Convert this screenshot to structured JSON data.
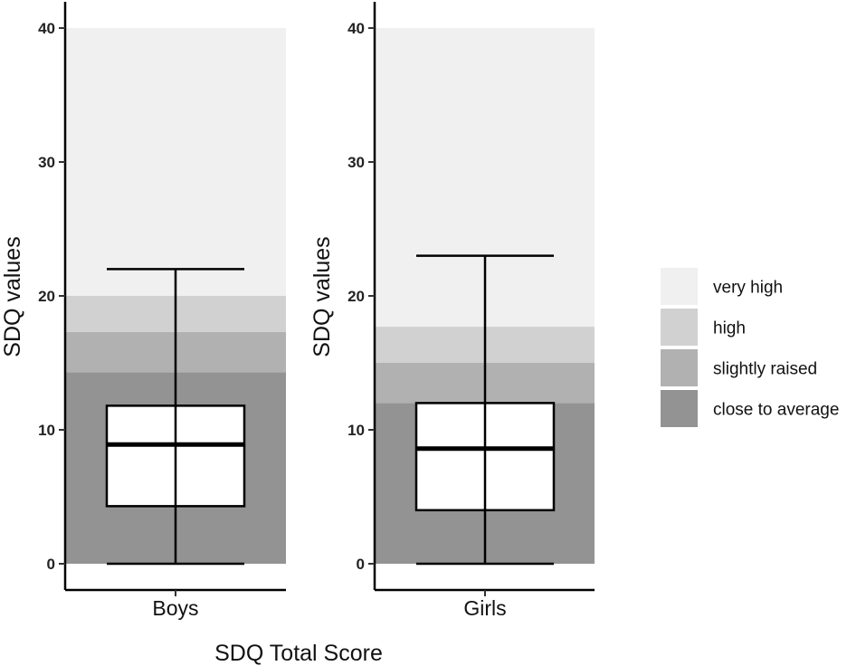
{
  "chart_data": {
    "type": "boxplot",
    "title": "",
    "xlabel": "SDQ Total Score",
    "ylabel": "SDQ values",
    "ylim": [
      0,
      40
    ],
    "yticks": [
      "0",
      "10",
      "20",
      "30",
      "40"
    ],
    "grid": false,
    "legend": {
      "placement": "right",
      "entries": [
        {
          "label": "very high",
          "color": "#f0f0f0"
        },
        {
          "label": "high",
          "color": "#d1d1d1"
        },
        {
          "label": "slightly raised",
          "color": "#b1b1b1"
        },
        {
          "label": "close to average",
          "color": "#939393"
        }
      ]
    },
    "panels": [
      {
        "category": "Boys",
        "bands": [
          {
            "label": "close to average",
            "from": 0,
            "to": 14.3
          },
          {
            "label": "slightly raised",
            "from": 14.3,
            "to": 17.3
          },
          {
            "label": "high",
            "from": 17.3,
            "to": 20
          },
          {
            "label": "very high",
            "from": 20,
            "to": 40
          }
        ],
        "box": {
          "min": 0,
          "q1": 4.3,
          "median": 8.9,
          "q3": 11.8,
          "max": 22
        }
      },
      {
        "category": "Girls",
        "bands": [
          {
            "label": "close to average",
            "from": 0,
            "to": 12
          },
          {
            "label": "slightly raised",
            "from": 12,
            "to": 15
          },
          {
            "label": "high",
            "from": 15,
            "to": 17.7
          },
          {
            "label": "very high",
            "from": 17.7,
            "to": 40
          }
        ],
        "box": {
          "min": 0,
          "q1": 4,
          "median": 8.6,
          "q3": 12,
          "max": 23
        }
      }
    ]
  }
}
